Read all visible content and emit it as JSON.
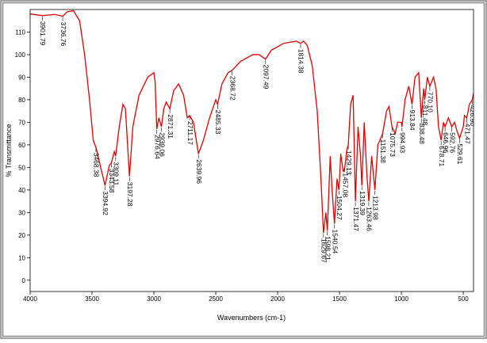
{
  "chart_data": {
    "type": "line",
    "xlabel": "Wavenumbers (cm-1)",
    "ylabel": "% Transmittance",
    "color": "#e00000",
    "xlim": [
      4000,
      417
    ],
    "ylim": [
      -5,
      120
    ],
    "xticks": [
      4000,
      3500,
      3000,
      2500,
      2000,
      1500,
      1000,
      500
    ],
    "yticks": [
      0,
      10,
      20,
      30,
      40,
      50,
      60,
      70,
      80,
      90,
      100,
      110
    ],
    "x": [
      4000,
      3901.79,
      3800,
      3736.76,
      3700,
      3650,
      3600,
      3560,
      3520,
      3490,
      3468.38,
      3430,
      3394.92,
      3360,
      3343.58,
      3320,
      3309.11,
      3280,
      3250,
      3230,
      3197.28,
      3170,
      3120,
      3050,
      3000,
      2990,
      2976.64,
      2960,
      2939.06,
      2920,
      2900,
      2871.31,
      2840,
      2800,
      2760,
      2730,
      2711.17,
      2680,
      2639.96,
      2600,
      2550,
      2500,
      2485.33,
      2450,
      2400,
      2368.72,
      2300,
      2200,
      2150,
      2097.49,
      2050,
      1950,
      1850,
      1814.38,
      1790,
      1760,
      1720,
      1680,
      1650,
      1629.67,
      1610,
      1598.21,
      1575,
      1560,
      1540.54,
      1520,
      1504.27,
      1490,
      1470,
      1457.08,
      1440,
      1429.13,
      1410,
      1390,
      1371.47,
      1350,
      1330,
      1319.39,
      1300,
      1280,
      1263.46,
      1240,
      1213.98,
      1190,
      1151.38,
      1120,
      1100,
      1075.73,
      1050,
      1030,
      1000,
      994.93,
      970,
      940,
      913.84,
      890,
      860,
      838.48,
      820,
      811.48,
      790,
      770.1,
      740,
      720,
      700,
      678.71,
      660,
      646.96,
      620,
      592.76,
      570,
      550,
      529.61,
      500,
      490,
      471.47,
      450,
      426.9,
      417
    ],
    "values": [
      118,
      117.3,
      117.8,
      117,
      119,
      119.5,
      115,
      100,
      80,
      62,
      59,
      50,
      42,
      51,
      52,
      57,
      55,
      68,
      78,
      76,
      46,
      68,
      82,
      90,
      92,
      88,
      67,
      72,
      68,
      76,
      79,
      76,
      84,
      87,
      82,
      72,
      73,
      70,
      56,
      62,
      72,
      80,
      78,
      87,
      92,
      93,
      97,
      100,
      100,
      98,
      102,
      105,
      106,
      105,
      106,
      104,
      95,
      75,
      45,
      21,
      30,
      22,
      55,
      40,
      25,
      45,
      40,
      56,
      48,
      50,
      58,
      60,
      78,
      82,
      35,
      68,
      55,
      42,
      70,
      48,
      35,
      55,
      40,
      60,
      65,
      75,
      77,
      68,
      65,
      70,
      70,
      68,
      80,
      86,
      78,
      90,
      92,
      72,
      85,
      80,
      90,
      86,
      90,
      85,
      68,
      62,
      70,
      68,
      72,
      68,
      70,
      66,
      63,
      68,
      73,
      72,
      78,
      80,
      83
    ],
    "peaks": [
      3901.79,
      3736.76,
      3468.38,
      3394.92,
      3343.58,
      3309.11,
      3197.28,
      2976.64,
      2939.06,
      2871.31,
      2711.17,
      2639.96,
      2485.33,
      2368.72,
      2097.49,
      1814.38,
      1629.67,
      1598.21,
      1540.54,
      1504.27,
      1457.08,
      1429.13,
      1371.47,
      1319.39,
      1263.46,
      1213.98,
      1151.38,
      1075.73,
      994.93,
      913.84,
      838.48,
      811.48,
      {
        "value": 770.1,
        "label": "770.10"
      },
      678.71,
      646.96,
      592.76,
      529.61,
      471.47,
      {
        "value": 426.9,
        "label": "426.90"
      }
    ]
  }
}
